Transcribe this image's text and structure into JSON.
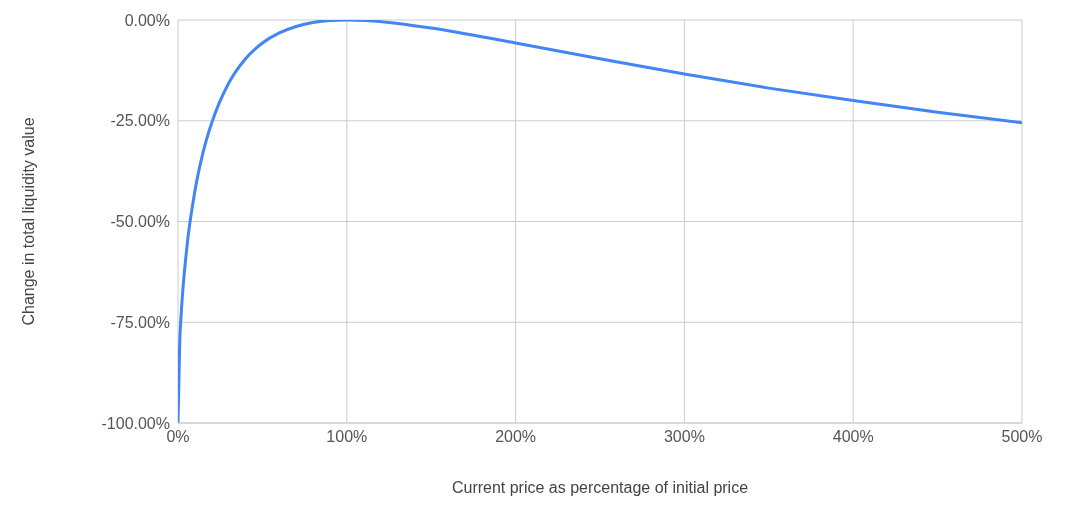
{
  "chart_data": {
    "type": "line",
    "xlabel": "Current price as percentage of initial price",
    "ylabel": "Change in total liquidity value",
    "x": [
      0,
      1,
      2,
      5,
      10,
      15,
      20,
      30,
      40,
      50,
      60,
      70,
      80,
      90,
      100,
      125,
      150,
      200,
      250,
      300,
      350,
      400,
      450,
      500
    ],
    "series": [
      {
        "color": "#4285f4",
        "values": [
          -100,
          -80.2,
          -72.3,
          -57.4,
          -42.5,
          -32.6,
          -25.5,
          -15.7,
          -9.6,
          -5.7,
          -3.2,
          -1.6,
          -0.6,
          -0.1,
          0,
          -0.6,
          -2,
          -5.7,
          -9.6,
          -13.4,
          -16.9,
          -20,
          -22.9,
          -25.5
        ]
      }
    ],
    "xlim": [
      0,
      500
    ],
    "xticks": [
      {
        "value": 0,
        "label": "0%"
      },
      {
        "value": 100,
        "label": "100%"
      },
      {
        "value": 200,
        "label": "200%"
      },
      {
        "value": 300,
        "label": "300%"
      },
      {
        "value": 400,
        "label": "400%"
      },
      {
        "value": 500,
        "label": "500%"
      }
    ],
    "ylim": [
      -100,
      0
    ],
    "yticks": [
      {
        "value": -100,
        "label": "-100.00%"
      },
      {
        "value": -75,
        "label": "-75.00%"
      },
      {
        "value": -50,
        "label": "-50.00%"
      },
      {
        "value": -25,
        "label": "-25.00%"
      },
      {
        "value": 0,
        "label": "0.00%"
      }
    ],
    "grid": true,
    "marker": "none",
    "line_style": "solid",
    "legend": false
  }
}
